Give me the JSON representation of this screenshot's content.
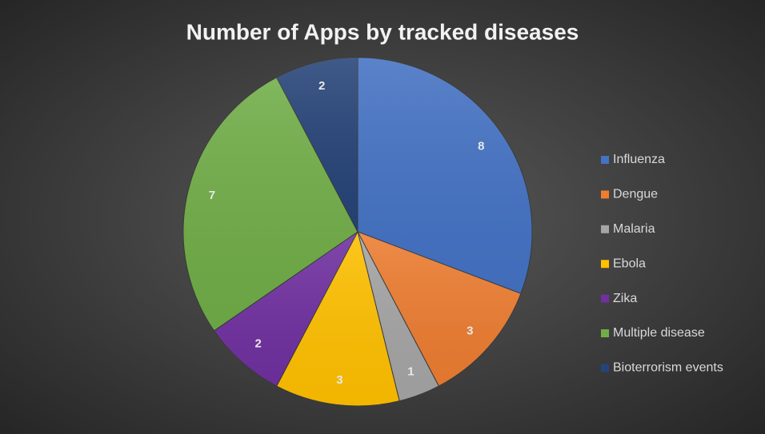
{
  "chart_data": {
    "type": "pie",
    "title": "Number of Apps by tracked diseases",
    "categories": [
      "Influenza",
      "Dengue",
      "Malaria",
      "Ebola",
      "Zika",
      "Multiple disease",
      "Bioterrorism events"
    ],
    "values": [
      8,
      3,
      1,
      3,
      2,
      7,
      2
    ],
    "colors": [
      "#4472c4",
      "#ed7d31",
      "#a5a5a5",
      "#ffc000",
      "#7030a0",
      "#70ad47",
      "#264478"
    ],
    "legend": "right"
  }
}
